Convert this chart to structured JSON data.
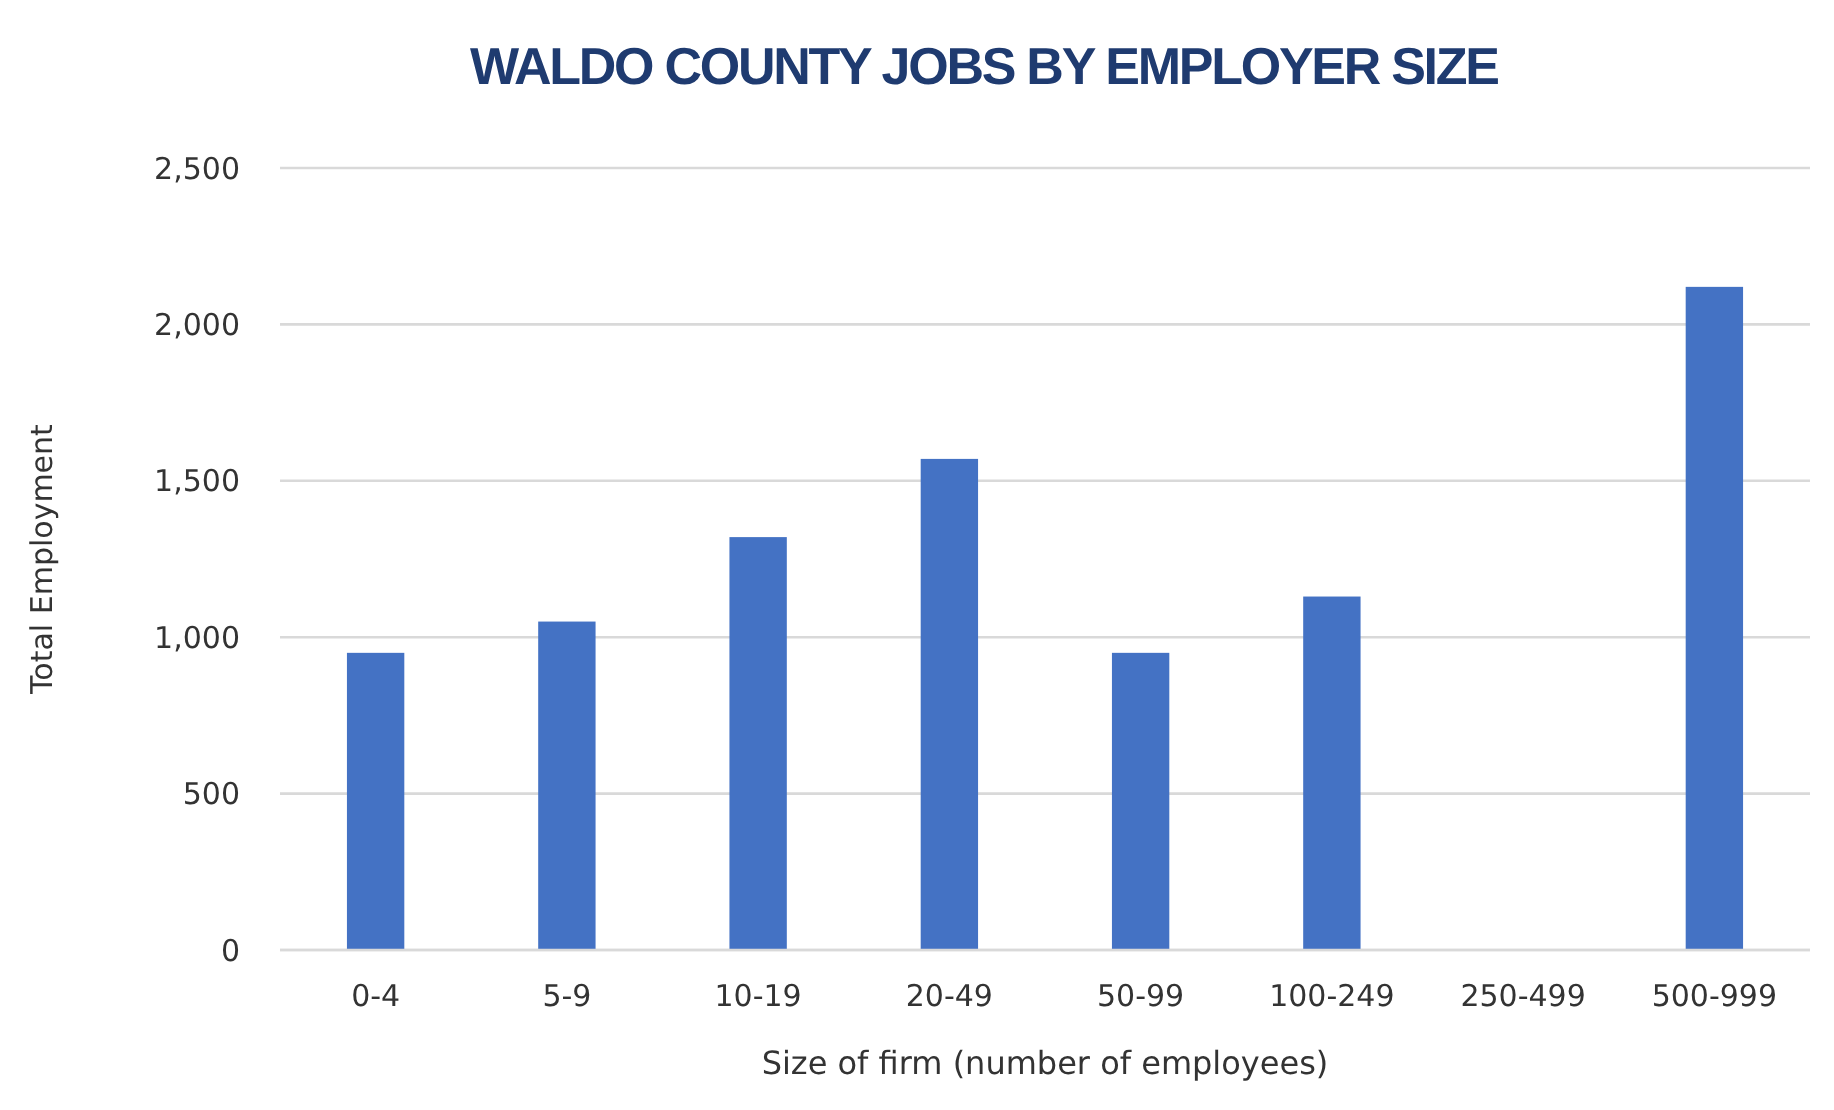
{
  "chart_data": {
    "type": "bar",
    "title": "WALDO COUNTY JOBS BY EMPLOYER SIZE",
    "xlabel": "Size of firm (number of employees)",
    "ylabel": "Total Employment",
    "categories": [
      "0-4",
      "5-9",
      "10-19",
      "20-49",
      "50-99",
      "100-249",
      "250-499",
      "500-999"
    ],
    "values": [
      950,
      1050,
      1320,
      1570,
      950,
      1130,
      0,
      2120
    ],
    "color": "#4472c4",
    "ylim": [
      0,
      2500
    ],
    "yticks": [
      {
        "value": 0,
        "label": "0"
      },
      {
        "value": 500,
        "label": "500"
      },
      {
        "value": 1000,
        "label": "1,000"
      },
      {
        "value": 1500,
        "label": "1,500"
      },
      {
        "value": 2000,
        "label": "2,000"
      },
      {
        "value": 2500,
        "label": "2,500"
      }
    ],
    "grid": "y"
  }
}
